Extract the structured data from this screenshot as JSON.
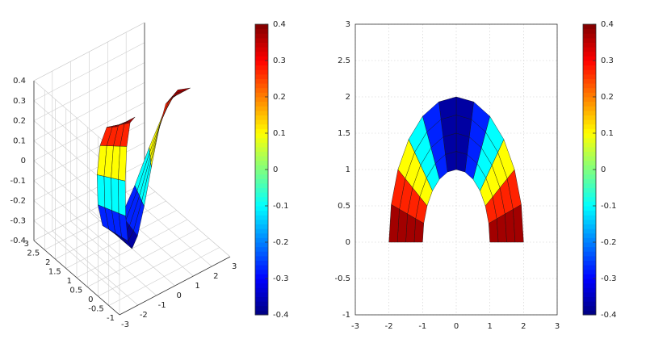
{
  "chart_data": [
    {
      "type": "surface3d",
      "colormap": "jet",
      "grid": true,
      "theta": [
        0,
        15,
        30,
        45,
        60,
        75,
        90,
        105,
        120,
        135,
        150,
        165,
        180
      ],
      "r": [
        1,
        1.25,
        1.5,
        1.75,
        2
      ],
      "z": [
        [
          0.4,
          0.346,
          0.2,
          0,
          -0.2,
          -0.346,
          -0.4,
          -0.346,
          -0.2,
          0,
          0.2,
          0.346,
          0.4
        ],
        [
          0.4,
          0.346,
          0.2,
          0,
          -0.2,
          -0.346,
          -0.4,
          -0.346,
          -0.2,
          0,
          0.2,
          0.346,
          0.4
        ],
        [
          0.4,
          0.346,
          0.2,
          0,
          -0.2,
          -0.346,
          -0.4,
          -0.346,
          -0.2,
          0,
          0.2,
          0.346,
          0.4
        ],
        [
          0.4,
          0.346,
          0.2,
          0,
          -0.2,
          -0.346,
          -0.4,
          -0.346,
          -0.2,
          0,
          0.2,
          0.346,
          0.4
        ],
        [
          0.4,
          0.346,
          0.2,
          0,
          -0.2,
          -0.346,
          -0.4,
          -0.346,
          -0.2,
          0,
          0.2,
          0.346,
          0.4
        ]
      ],
      "xlim": [
        -3,
        3
      ],
      "xticks": [
        -3,
        -2,
        -1,
        0,
        1,
        2,
        3
      ],
      "ylim": [
        -1,
        3
      ],
      "yticks": [
        -1,
        -0.5,
        0,
        0.5,
        1,
        1.5,
        2,
        2.5,
        3
      ],
      "zlim": [
        -0.4,
        0.4
      ],
      "zticks": [
        -0.4,
        -0.3,
        -0.2,
        -0.1,
        0,
        0.1,
        0.2,
        0.3,
        0.4
      ],
      "clim": [
        -0.4,
        0.4
      ],
      "cticks": [
        -0.4,
        -0.3,
        -0.2,
        -0.1,
        0,
        0.1,
        0.2,
        0.3,
        0.4
      ]
    },
    {
      "type": "pcolor",
      "colormap": "jet",
      "grid": true,
      "theta": [
        0,
        15,
        30,
        45,
        60,
        75,
        90,
        105,
        120,
        135,
        150,
        165,
        180
      ],
      "r": [
        1,
        1.25,
        1.5,
        1.75,
        2
      ],
      "z": [
        [
          0.4,
          0.346,
          0.2,
          0,
          -0.2,
          -0.346,
          -0.4,
          -0.346,
          -0.2,
          0,
          0.2,
          0.346,
          0.4
        ],
        [
          0.4,
          0.346,
          0.2,
          0,
          -0.2,
          -0.346,
          -0.4,
          -0.346,
          -0.2,
          0,
          0.2,
          0.346,
          0.4
        ],
        [
          0.4,
          0.346,
          0.2,
          0,
          -0.2,
          -0.346,
          -0.4,
          -0.346,
          -0.2,
          0,
          0.2,
          0.346,
          0.4
        ],
        [
          0.4,
          0.346,
          0.2,
          0,
          -0.2,
          -0.346,
          -0.4,
          -0.346,
          -0.2,
          0,
          0.2,
          0.346,
          0.4
        ],
        [
          0.4,
          0.346,
          0.2,
          0,
          -0.2,
          -0.346,
          -0.4,
          -0.346,
          -0.2,
          0,
          0.2,
          0.346,
          0.4
        ]
      ],
      "xlim": [
        -3,
        3
      ],
      "xticks": [
        -3,
        -2,
        -1,
        0,
        1,
        2,
        3
      ],
      "ylim": [
        -1,
        3
      ],
      "yticks": [
        -1,
        -0.5,
        0,
        0.5,
        1,
        1.5,
        2,
        2.5,
        3
      ],
      "clim": [
        -0.4,
        0.4
      ],
      "cticks": [
        -0.4,
        -0.3,
        -0.2,
        -0.1,
        0,
        0.1,
        0.2,
        0.3,
        0.4
      ]
    }
  ]
}
